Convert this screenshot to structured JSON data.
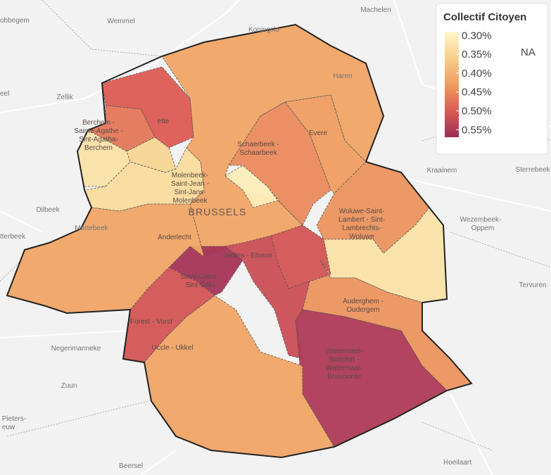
{
  "legend": {
    "title": "Collectif Citoyen",
    "lim": [
      0.29,
      0.57
    ],
    "colors": [
      "#fff8cc",
      "#f6cf8a",
      "#ef9d60",
      "#dc5b54",
      "#9c2d57"
    ],
    "ticks": [
      {
        "value": 0.3,
        "label": "0.30%"
      },
      {
        "value": 0.35,
        "label": "0.35%"
      },
      {
        "value": 0.4,
        "label": "0.40%"
      },
      {
        "value": 0.45,
        "label": "0.45%"
      },
      {
        "value": 0.5,
        "label": "0.50%"
      },
      {
        "value": 0.55,
        "label": "0.55%"
      }
    ],
    "na_label": "NA"
  },
  "regions": [
    {
      "label": [
        "BRUSSELS"
      ],
      "value": 0.42
    },
    {
      "label": [
        "ette"
      ],
      "value": 0.5
    },
    {
      "value": 0.47
    },
    {
      "label": [
        "Berchem -",
        "Sainte-Agathe -",
        "Sint-Agatha-",
        "Berchem"
      ],
      "value": 0.33
    },
    {
      "value": 0.35
    },
    {
      "label": [
        "Molenbeek-",
        "Saint-Jean -",
        "Sint-Jans-",
        "Molenbeek"
      ],
      "value": 0.34
    },
    {
      "label": [
        "Schaerbeek -",
        "Schaarbeek"
      ],
      "value": 0.45
    },
    {
      "value": 0.31
    },
    {
      "label": [
        "Evere"
      ],
      "value": 0.43
    },
    {
      "label": [
        "Woluwe-Saint-",
        "Lambert - Sint-",
        "Lambrechts-",
        "Woluwe"
      ],
      "value": 0.44
    },
    {
      "value": 0.33
    },
    {
      "value": 0.51
    },
    {
      "label": [
        "Ixelles - Elsene"
      ],
      "value": 0.52
    },
    {
      "label": [
        "Auderghem -",
        "Oudergem"
      ],
      "value": 0.44
    },
    {
      "label": [
        "Watermael-",
        "Boitsfort -",
        "Watermaal-",
        "Bosvoorde"
      ],
      "value": 0.55
    },
    {
      "label": [
        "Uccle - Ukkel"
      ],
      "value": 0.42
    },
    {
      "label": [
        "Forest - Vorst"
      ],
      "value": 0.51
    },
    {
      "label": [
        "Saint-Gilles -",
        "Sint-Gillis"
      ],
      "value": 0.56
    },
    {
      "label": [
        "Anderlecht"
      ],
      "value": 0.42
    }
  ],
  "places": [
    "Machelen",
    "Wemmel",
    "Koningslo",
    "obbegem",
    "eel",
    "Zellik",
    "Haren",
    "Dilbeek",
    "tterbeek",
    "Mortebeek",
    "Kraainem",
    "Sterrebeek",
    "Wezembeek-",
    "Oppem",
    "Tervuren",
    "Negenmanneke",
    "Zuun",
    "Pieters-",
    "euw",
    "Beersel",
    "Hoeilaart"
  ]
}
